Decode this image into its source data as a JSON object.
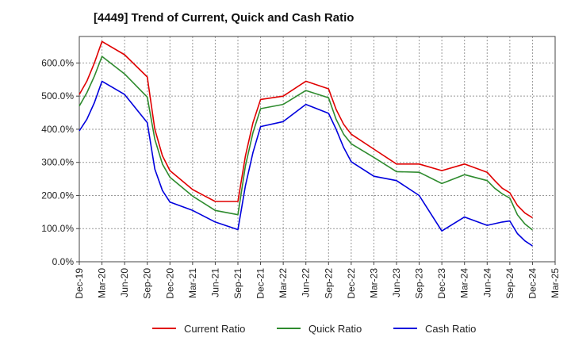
{
  "chart_data": {
    "type": "line",
    "title": "[4449]  Trend of Current, Quick and Cash Ratio",
    "xlabel": "",
    "ylabel": "",
    "x_tick_labels": [
      "Dec-19",
      "Mar-20",
      "Jun-20",
      "Sep-20",
      "Dec-20",
      "Mar-21",
      "Jun-21",
      "Sep-21",
      "Dec-21",
      "Mar-22",
      "Jun-22",
      "Sep-22",
      "Dec-22",
      "Mar-23",
      "Jun-23",
      "Sep-23",
      "Dec-23",
      "Mar-24",
      "Jun-24",
      "Sep-24",
      "Dec-24",
      "Mar-25"
    ],
    "y_tick_labels": [
      "0.0%",
      "100.0%",
      "200.0%",
      "300.0%",
      "400.0%",
      "500.0%",
      "600.0%"
    ],
    "ylim": [
      0,
      680
    ],
    "xlim": [
      "Dec-19",
      "Mar-25"
    ],
    "grid": true,
    "legend_position": "bottom",
    "series": [
      {
        "name": "Current Ratio",
        "color": "#e00000",
        "points": [
          [
            "Dec-19",
            505
          ],
          [
            "Jan-20",
            545
          ],
          [
            "Feb-20",
            600
          ],
          [
            "Mar-20",
            665
          ],
          [
            "Jun-20",
            625
          ],
          [
            "Sep-20",
            558
          ],
          [
            "Oct-20",
            400
          ],
          [
            "Nov-20",
            320
          ],
          [
            "Dec-20",
            275
          ],
          [
            "Mar-21",
            218
          ],
          [
            "Jun-21",
            182
          ],
          [
            "Sep-21",
            182
          ],
          [
            "Oct-21",
            320
          ],
          [
            "Nov-21",
            420
          ],
          [
            "Dec-21",
            490
          ],
          [
            "Mar-22",
            500
          ],
          [
            "Jun-22",
            545
          ],
          [
            "Sep-22",
            522
          ],
          [
            "Oct-22",
            460
          ],
          [
            "Nov-22",
            415
          ],
          [
            "Dec-22",
            385
          ],
          [
            "Mar-23",
            340
          ],
          [
            "Jun-23",
            295
          ],
          [
            "Sep-23",
            295
          ],
          [
            "Dec-23",
            275
          ],
          [
            "Mar-24",
            295
          ],
          [
            "Jun-24",
            270
          ],
          [
            "Jul-24",
            245
          ],
          [
            "Aug-24",
            222
          ],
          [
            "Sep-24",
            208
          ],
          [
            "Oct-24",
            170
          ],
          [
            "Nov-24",
            147
          ],
          [
            "Dec-24",
            133
          ]
        ]
      },
      {
        "name": "Quick Ratio",
        "color": "#2e8b2e",
        "points": [
          [
            "Dec-19",
            470
          ],
          [
            "Jan-20",
            510
          ],
          [
            "Feb-20",
            560
          ],
          [
            "Mar-20",
            620
          ],
          [
            "Jun-20",
            567
          ],
          [
            "Sep-20",
            497
          ],
          [
            "Oct-20",
            370
          ],
          [
            "Nov-20",
            295
          ],
          [
            "Dec-20",
            255
          ],
          [
            "Mar-21",
            198
          ],
          [
            "Jun-21",
            155
          ],
          [
            "Sep-21",
            142
          ],
          [
            "Oct-21",
            290
          ],
          [
            "Nov-21",
            390
          ],
          [
            "Dec-21",
            462
          ],
          [
            "Mar-22",
            475
          ],
          [
            "Jun-22",
            517
          ],
          [
            "Sep-22",
            495
          ],
          [
            "Oct-22",
            430
          ],
          [
            "Nov-22",
            385
          ],
          [
            "Dec-22",
            356
          ],
          [
            "Mar-23",
            315
          ],
          [
            "Jun-23",
            272
          ],
          [
            "Sep-23",
            270
          ],
          [
            "Dec-23",
            236
          ],
          [
            "Mar-24",
            263
          ],
          [
            "Jun-24",
            245
          ],
          [
            "Jul-24",
            222
          ],
          [
            "Aug-24",
            205
          ],
          [
            "Sep-24",
            192
          ],
          [
            "Oct-24",
            142
          ],
          [
            "Nov-24",
            114
          ],
          [
            "Dec-24",
            96
          ]
        ]
      },
      {
        "name": "Cash Ratio",
        "color": "#0000dd",
        "points": [
          [
            "Dec-19",
            395
          ],
          [
            "Jan-20",
            430
          ],
          [
            "Feb-20",
            480
          ],
          [
            "Mar-20",
            545
          ],
          [
            "Jun-20",
            505
          ],
          [
            "Sep-20",
            420
          ],
          [
            "Oct-20",
            280
          ],
          [
            "Nov-20",
            215
          ],
          [
            "Dec-20",
            180
          ],
          [
            "Mar-21",
            155
          ],
          [
            "Jun-21",
            120
          ],
          [
            "Sep-21",
            97
          ],
          [
            "Oct-21",
            230
          ],
          [
            "Nov-21",
            330
          ],
          [
            "Dec-21",
            408
          ],
          [
            "Mar-22",
            423
          ],
          [
            "Jun-22",
            475
          ],
          [
            "Sep-22",
            448
          ],
          [
            "Oct-22",
            400
          ],
          [
            "Nov-22",
            345
          ],
          [
            "Dec-22",
            302
          ],
          [
            "Mar-23",
            258
          ],
          [
            "Jun-23",
            245
          ],
          [
            "Sep-23",
            200
          ],
          [
            "Dec-23",
            93
          ],
          [
            "Mar-24",
            135
          ],
          [
            "Jun-24",
            110
          ],
          [
            "Jul-24",
            115
          ],
          [
            "Aug-24",
            120
          ],
          [
            "Sep-24",
            123
          ],
          [
            "Oct-24",
            85
          ],
          [
            "Nov-24",
            63
          ],
          [
            "Dec-24",
            48
          ]
        ]
      }
    ]
  }
}
